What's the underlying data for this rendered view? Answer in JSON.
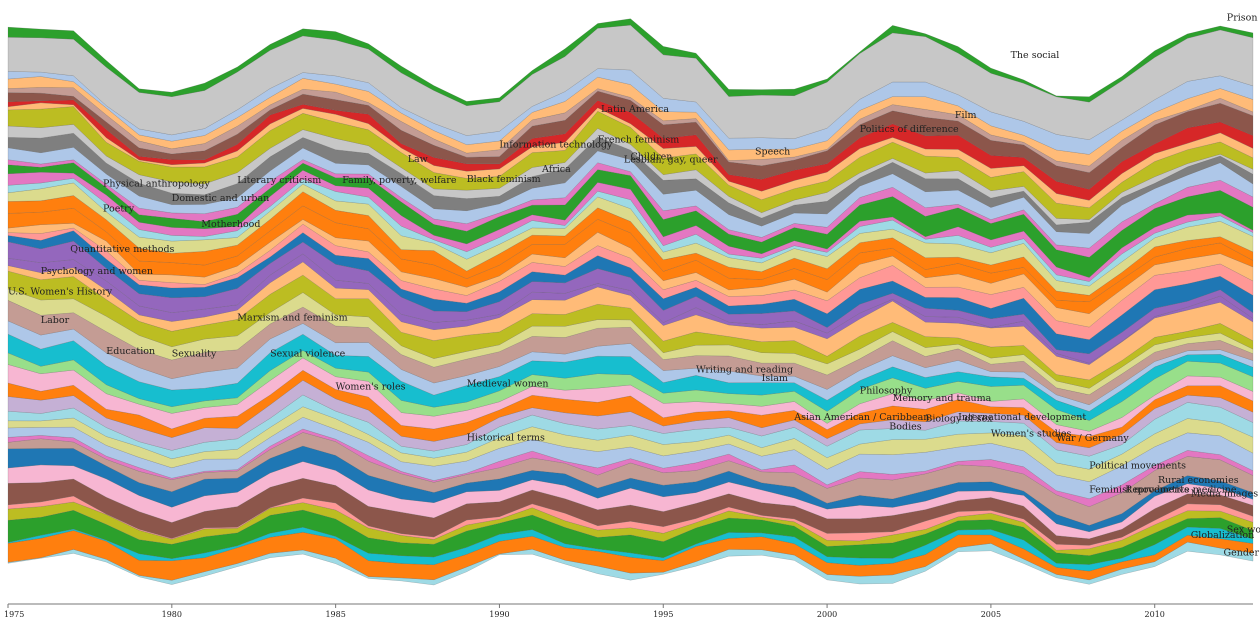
{
  "chart_data": {
    "type": "area",
    "style": "streamgraph",
    "xlim": [
      1975,
      2013
    ],
    "ticks": [
      1975,
      1980,
      1985,
      1990,
      1995,
      2000,
      2005,
      2010
    ],
    "grid": false,
    "legend": "none",
    "palette": [
      "#c7c7c7",
      "#ff7f0e",
      "#c49c94",
      "#9467bd",
      "#1f77b4",
      "#ff9896",
      "#ffbb78",
      "#f7b6d2",
      "#bcbd22",
      "#8c564b",
      "#17becf",
      "#98df8a",
      "#2ca02c",
      "#d62728",
      "#aec7e8",
      "#e377c2",
      "#dbdb8d",
      "#9edae5",
      "#7f7f7f",
      "#c5b0d5"
    ],
    "series": [
      {
        "name": "Gender theory",
        "color": "#9edae5"
      },
      {
        "name": "Sex work",
        "color": "#ff7f0e"
      },
      {
        "name": "Globalization",
        "color": "#17becf"
      },
      {
        "name": "Media images",
        "color": "#2ca02c"
      },
      {
        "name": "Feminist movements",
        "color": "#bcbd22"
      },
      {
        "name": "Reproductive medicine",
        "color": "#ff9896"
      },
      {
        "name": "Rural economies",
        "color": "#8c564b"
      },
      {
        "name": "Political movements",
        "color": "#f7b6d2"
      },
      {
        "name": "Women's studies",
        "color": "#1f77b4"
      },
      {
        "name": "War / Germany",
        "color": "#c49c94"
      },
      {
        "name": "Bodies",
        "color": "#e377c2"
      },
      {
        "name": "Asian American / Caribbean",
        "color": "#aec7e8"
      },
      {
        "name": "Biology of sex",
        "color": "#dbdb8d"
      },
      {
        "name": "International development",
        "color": "#9edae5"
      },
      {
        "name": "Memory and trauma",
        "color": "#c5b0d5"
      },
      {
        "name": "Historical terms",
        "color": "#ff7f0e"
      },
      {
        "name": "Philosophy",
        "color": "#f7b6d2"
      },
      {
        "name": "Medieval women",
        "color": "#98df8a"
      },
      {
        "name": "Islam",
        "color": "#17becf"
      },
      {
        "name": "Writing and reading",
        "color": "#aec7e8"
      },
      {
        "name": "Women's roles",
        "color": "#c49c94"
      },
      {
        "name": "Sexual violence",
        "color": "#dbdb8d"
      },
      {
        "name": "Sexuality",
        "color": "#bcbd22"
      },
      {
        "name": "Education",
        "color": "#ffbb78"
      },
      {
        "name": "Marxism and feminism",
        "color": "#9467bd"
      },
      {
        "name": "Labor",
        "color": "#9467bd"
      },
      {
        "name": "U.S. Women's History",
        "color": "#1f77b4"
      },
      {
        "name": "Psychology and women",
        "color": "#ff9896"
      },
      {
        "name": "Quantitative methods",
        "color": "#ffbb78"
      },
      {
        "name": "Motherhood",
        "color": "#ff7f0e"
      },
      {
        "name": "Poetry",
        "color": "#ff7f0e"
      },
      {
        "name": "Domestic and urban",
        "color": "#dbdb8d"
      },
      {
        "name": "Physical anthropology",
        "color": "#9edae5"
      },
      {
        "name": "Literary criticism",
        "color": "#e377c2"
      },
      {
        "name": "Family, poverty, welfare",
        "color": "#2ca02c"
      },
      {
        "name": "Law",
        "color": "#e377c2"
      },
      {
        "name": "Black feminism",
        "color": "#aec7e8"
      },
      {
        "name": "Information technology",
        "color": "#7f7f7f"
      },
      {
        "name": "Africa",
        "color": "#c7c7c7"
      },
      {
        "name": "French feminism",
        "color": "#bcbd22"
      },
      {
        "name": "Latin America",
        "color": "#ffbb78"
      },
      {
        "name": "Lesbian, gay, queer",
        "color": "#d62728"
      },
      {
        "name": "Children",
        "color": "#8c564b"
      },
      {
        "name": "Speech",
        "color": "#c49c94"
      },
      {
        "name": "Politics of difference",
        "color": "#ffbb78"
      },
      {
        "name": "Film",
        "color": "#aec7e8"
      },
      {
        "name": "The social",
        "color": "#c7c7c7"
      },
      {
        "name": "Prison",
        "color": "#2ca02c"
      }
    ],
    "annotations": [
      {
        "text": "The social",
        "x": 2005.6,
        "y": 0.92
      },
      {
        "text": "Prison",
        "x": 2012.2,
        "y": 0.985
      },
      {
        "text": "Film",
        "x": 2003.9,
        "y": 0.815
      },
      {
        "text": "Politics of difference",
        "x": 2001.0,
        "y": 0.79
      },
      {
        "text": "Latin America",
        "x": 1993.1,
        "y": 0.825
      },
      {
        "text": "French feminism",
        "x": 1993.0,
        "y": 0.772
      },
      {
        "text": "Information technology",
        "x": 1990.0,
        "y": 0.763
      },
      {
        "text": "Children",
        "x": 1994.0,
        "y": 0.742
      },
      {
        "text": "Lesbian, gay, queer",
        "x": 1993.8,
        "y": 0.737
      },
      {
        "text": "Africa",
        "x": 1991.3,
        "y": 0.72
      },
      {
        "text": "Speech",
        "x": 1997.8,
        "y": 0.751
      },
      {
        "text": "Law",
        "x": 1987.2,
        "y": 0.738
      },
      {
        "text": "Black feminism",
        "x": 1989.0,
        "y": 0.703
      },
      {
        "text": "Physical anthropology",
        "x": 1977.9,
        "y": 0.695
      },
      {
        "text": "Literary criticism",
        "x": 1982.0,
        "y": 0.701
      },
      {
        "text": "Family, poverty, welfare",
        "x": 1985.2,
        "y": 0.701
      },
      {
        "text": "Domestic and urban",
        "x": 1980.0,
        "y": 0.67
      },
      {
        "text": "Poetry",
        "x": 1977.9,
        "y": 0.651
      },
      {
        "text": "Motherhood",
        "x": 1980.9,
        "y": 0.624
      },
      {
        "text": "Quantitative methods",
        "x": 1976.9,
        "y": 0.58
      },
      {
        "text": "Psychology and women",
        "x": 1976.0,
        "y": 0.542
      },
      {
        "text": "U.S. Women's History",
        "x": 1975.0,
        "y": 0.506
      },
      {
        "text": "Labor",
        "x": 1976.0,
        "y": 0.456
      },
      {
        "text": "Marxism and feminism",
        "x": 1982.0,
        "y": 0.461
      },
      {
        "text": "Education",
        "x": 1978.0,
        "y": 0.402
      },
      {
        "text": "Sexuality",
        "x": 1980.0,
        "y": 0.398
      },
      {
        "text": "Sexual violence",
        "x": 1983.0,
        "y": 0.398
      },
      {
        "text": "Women's roles",
        "x": 1985.0,
        "y": 0.34
      },
      {
        "text": "Medieval women",
        "x": 1989.0,
        "y": 0.345
      },
      {
        "text": "Writing and reading",
        "x": 1996.0,
        "y": 0.37
      },
      {
        "text": "Islam",
        "x": 1998.0,
        "y": 0.355
      },
      {
        "text": "Philosophy",
        "x": 2001.0,
        "y": 0.333
      },
      {
        "text": "Memory and trauma",
        "x": 2002.0,
        "y": 0.32
      },
      {
        "text": "Asian American / Caribbean",
        "x": 1999.0,
        "y": 0.287
      },
      {
        "text": "International development",
        "x": 2004.0,
        "y": 0.287
      },
      {
        "text": "Biology of sex",
        "x": 2003.0,
        "y": 0.284
      },
      {
        "text": "Bodies",
        "x": 2001.9,
        "y": 0.27
      },
      {
        "text": "Women's studies",
        "x": 2005.0,
        "y": 0.258
      },
      {
        "text": "War / Germany",
        "x": 2007.0,
        "y": 0.25
      },
      {
        "text": "Historical terms",
        "x": 1989.0,
        "y": 0.251
      },
      {
        "text": "Political movements",
        "x": 2008.0,
        "y": 0.202
      },
      {
        "text": "Rural economies",
        "x": 2010.1,
        "y": 0.177
      },
      {
        "text": "Reproductive medicine",
        "x": 2009.1,
        "y": 0.16
      },
      {
        "text": "Feminist movements",
        "x": 2008.0,
        "y": 0.16
      },
      {
        "text": "Media images",
        "x": 2011.1,
        "y": 0.153
      },
      {
        "text": "Sex work",
        "x": 2012.2,
        "y": 0.09
      },
      {
        "text": "Globalization",
        "x": 2011.1,
        "y": 0.08
      },
      {
        "text": "Gender theory",
        "x": 2012.1,
        "y": 0.05
      }
    ]
  }
}
